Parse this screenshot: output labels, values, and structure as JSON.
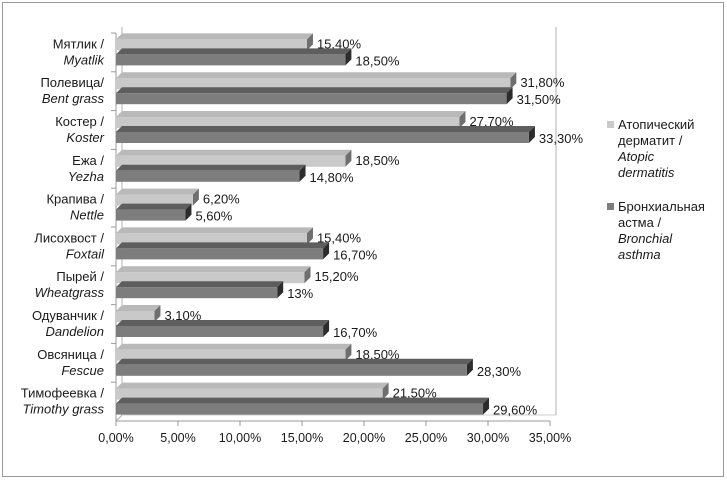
{
  "chart_data": {
    "type": "bar",
    "orientation": "horizontal",
    "style": "3d",
    "categories": [
      {
        "ru": "Мятлик /",
        "en": "Myatlik"
      },
      {
        "ru": "Полевица/",
        "en": "Bent grass"
      },
      {
        "ru": "Костер /",
        "en": "Koster"
      },
      {
        "ru": "Ежа /",
        "en": "Yezha"
      },
      {
        "ru": "Крапива /",
        "en": "Nettle"
      },
      {
        "ru": "Лисохвост /",
        "en": "Foxtail"
      },
      {
        "ru": "Пырей /",
        "en": "Wheatgrass"
      },
      {
        "ru": "Одуванчик /",
        "en": "Dandelion"
      },
      {
        "ru": "Овсяница /",
        "en": "Fescue"
      },
      {
        "ru": "Тимофеевка /",
        "en": "Timothy grass"
      }
    ],
    "series": [
      {
        "name_lines": [
          "Атопический",
          "дерматит /",
          "Atopic",
          "dermatitis"
        ],
        "color": "#c9c9c9",
        "values": [
          15.4,
          31.8,
          27.7,
          18.5,
          6.2,
          15.4,
          15.2,
          3.1,
          18.5,
          21.5
        ],
        "labels": [
          "15,40%",
          "31,80%",
          "27,70%",
          "18,50%",
          "6,20%",
          "15,40%",
          "15,20%",
          "3,10%",
          "18,50%",
          "21,50%"
        ]
      },
      {
        "name_lines": [
          "Бронхиальная",
          "астма /",
          "Bronchial",
          "asthma"
        ],
        "color": "#7d7d7d",
        "values": [
          18.5,
          31.5,
          33.3,
          14.8,
          5.6,
          16.7,
          13.0,
          16.7,
          28.3,
          29.6
        ],
        "labels": [
          "18,50%",
          "31,50%",
          "33,30%",
          "14,80%",
          "5,60%",
          "16,70%",
          "13%",
          "16,70%",
          "28,30%",
          "29,60%"
        ]
      }
    ],
    "x_ticks": [
      "0,00%",
      "5,00%",
      "10,00%",
      "15,00%",
      "20,00%",
      "25,00%",
      "30,00%",
      "35,00%"
    ],
    "xlim": [
      0,
      35
    ],
    "grid": false,
    "legend_position": "right"
  }
}
